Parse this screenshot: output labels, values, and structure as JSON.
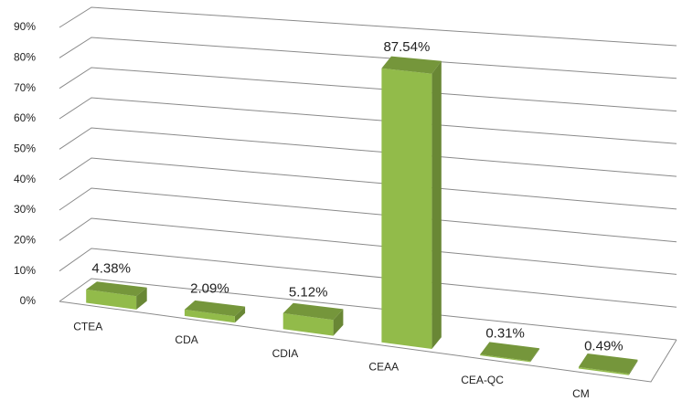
{
  "chart_data": {
    "type": "bar3d",
    "categories": [
      "CTEA",
      "CDA",
      "CDIA",
      "CEAA",
      "CEA-QC",
      "CM"
    ],
    "values": [
      4.38,
      2.09,
      5.12,
      87.54,
      0.31,
      0.49
    ],
    "value_labels": [
      "4.38%",
      "2.09%",
      "5.12%",
      "87.54%",
      "0.31%",
      "0.49%"
    ],
    "color": "#92bb4a",
    "ylim": [
      0,
      90
    ],
    "yticks": [
      {
        "value": 0,
        "label": "0%"
      },
      {
        "value": 10,
        "label": "10%"
      },
      {
        "value": 20,
        "label": "20%"
      },
      {
        "value": 30,
        "label": "30%"
      },
      {
        "value": 40,
        "label": "40%"
      },
      {
        "value": 50,
        "label": "50%"
      },
      {
        "value": 60,
        "label": "60%"
      },
      {
        "value": 70,
        "label": "70%"
      },
      {
        "value": 80,
        "label": "80%"
      },
      {
        "value": 90,
        "label": "90%"
      }
    ],
    "grid": true
  }
}
